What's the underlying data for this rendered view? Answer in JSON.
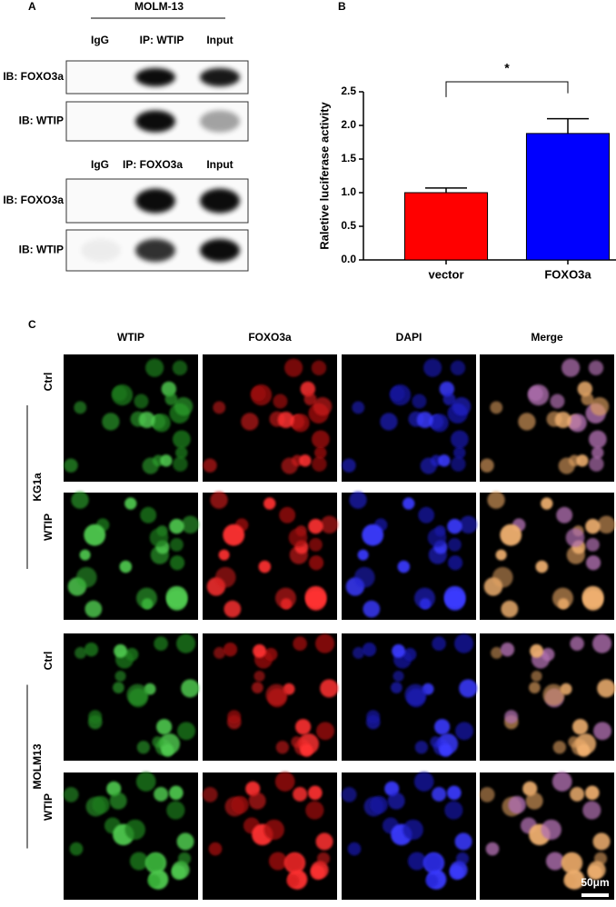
{
  "panel_a": {
    "label": "A",
    "cell_line": "MOLM-13",
    "blots": [
      {
        "lanes": [
          "IgG",
          "IP: WTIP",
          "Input"
        ],
        "rows": [
          "IB: FOXO3a",
          "IB: WTIP"
        ]
      },
      {
        "lanes": [
          "IgG",
          "IP: FOXO3a",
          "Input"
        ],
        "rows": [
          "IB: FOXO3a",
          "IB: WTIP"
        ]
      }
    ]
  },
  "chart_data": {
    "type": "bar",
    "panel_label": "B",
    "ylabel": "Raletive luciferase activity",
    "categories": [
      "vector",
      "FOXO3a"
    ],
    "values": [
      1.0,
      1.88
    ],
    "errors": [
      0.07,
      0.22
    ],
    "colors": [
      "#ff0000",
      "#0000ff"
    ],
    "annotation": "*",
    "ylim": [
      0,
      2.5
    ],
    "yticks": [
      {
        "value": 0,
        "label": "0.0"
      },
      {
        "value": 0.5,
        "label": "0.5"
      },
      {
        "value": 1,
        "label": "1.0"
      },
      {
        "value": 1.5,
        "label": "1.5"
      },
      {
        "value": 2,
        "label": "2.0"
      },
      {
        "value": 2.5,
        "label": "2.5"
      }
    ]
  },
  "panel_c": {
    "label": "C",
    "columns": [
      "WTIP",
      "FOXO3a",
      "DAPI",
      "Merge"
    ],
    "groups": [
      {
        "name": "KG1a",
        "rows": [
          "Ctrl",
          "WTIP"
        ]
      },
      {
        "name": "MOLM13",
        "rows": [
          "Ctrl",
          "WTIP"
        ]
      }
    ],
    "scale_bar": "50μm"
  }
}
